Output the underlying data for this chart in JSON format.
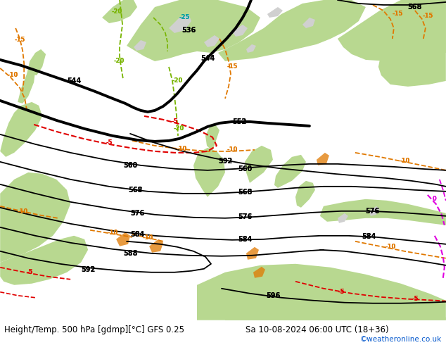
{
  "title_left": "Height/Temp. 500 hPa [gdmp][°C] GFS 0.25",
  "title_right": "Sa 10-08-2024 06:00 UTC (18+36)",
  "watermark": "©weatheronline.co.uk",
  "bg_gray": "#d0d0d0",
  "bg_green_land": "#b8d890",
  "bg_green_sea": "#c8e0a0",
  "z500_black": "#000000",
  "temp_orange": "#e07800",
  "temp_green": "#78b400",
  "temp_red": "#e00000",
  "temp_teal": "#00a0a0",
  "temp_magenta": "#e000e0",
  "bottom_bg": "#f0f0f0",
  "bottom_text": "#000000",
  "watermark_color": "#0055cc",
  "fig_width": 6.34,
  "fig_height": 4.9,
  "dpi": 100
}
